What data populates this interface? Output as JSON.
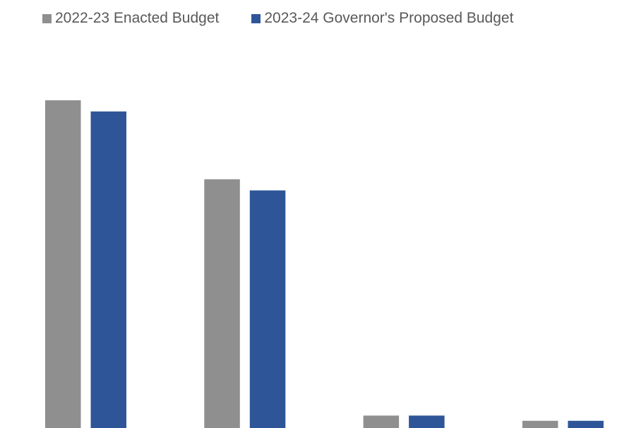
{
  "chart_data": {
    "type": "bar",
    "title": "",
    "xlabel": "",
    "ylabel": "",
    "categories": [
      "",
      "",
      "",
      ""
    ],
    "ylim": [
      0,
      100
    ],
    "grid": false,
    "legend_position": "top-left",
    "series": [
      {
        "name": "2022-23 Enacted Budget",
        "color": "#8f8f8f",
        "values": [
          100,
          75.9,
          3.8,
          2.2
        ]
      },
      {
        "name": "2023-24 Governor's Proposed Budget",
        "color": "#2e5597",
        "values": [
          96.6,
          72.5,
          3.8,
          2.2
        ]
      }
    ]
  }
}
